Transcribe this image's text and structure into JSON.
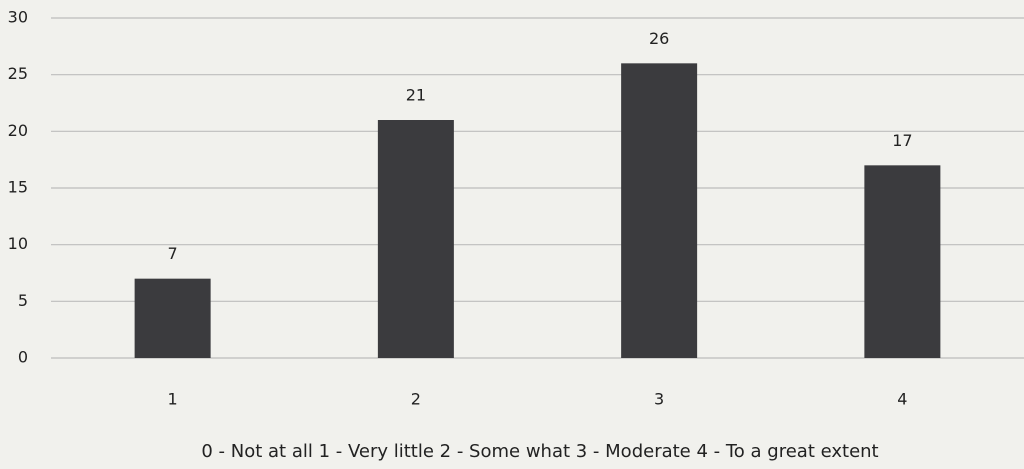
{
  "chart_data": {
    "type": "bar",
    "x_label": "0 - Not at all 1 - Very little 2 - Some what 3 - Moderate 4 - To a great extent",
    "categories": [
      "1",
      "2",
      "3",
      "4"
    ],
    "values": [
      7,
      21,
      26,
      17
    ],
    "color": "#3b3b3e",
    "ylim": [
      0,
      30
    ],
    "yticks": [
      0,
      5,
      10,
      15,
      20,
      25,
      30
    ],
    "grid": true,
    "data_labels": true
  }
}
